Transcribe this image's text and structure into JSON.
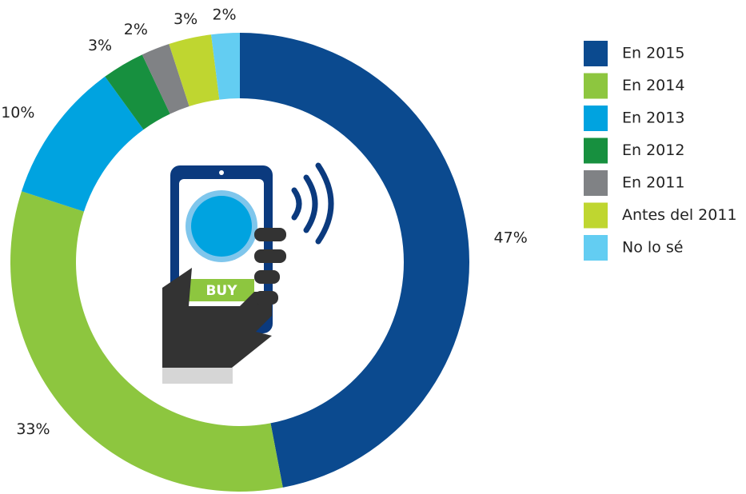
{
  "chart_data": {
    "type": "donut",
    "categories": [
      "En 2015",
      "En 2014",
      "En 2013",
      "En 2012",
      "En 2011",
      "Antes del 2011",
      "No lo sé"
    ],
    "values": [
      47,
      33,
      10,
      3,
      2,
      3,
      2
    ],
    "value_labels": [
      "47%",
      "33%",
      "10%",
      "3%",
      "2%",
      "3%",
      "2%"
    ],
    "colors": [
      "#0b4a8f",
      "#8dc63f",
      "#00a3e0",
      "#17903f",
      "#808285",
      "#bfd630",
      "#63cdf2"
    ],
    "annotation": "BUY",
    "legend": "right"
  }
}
